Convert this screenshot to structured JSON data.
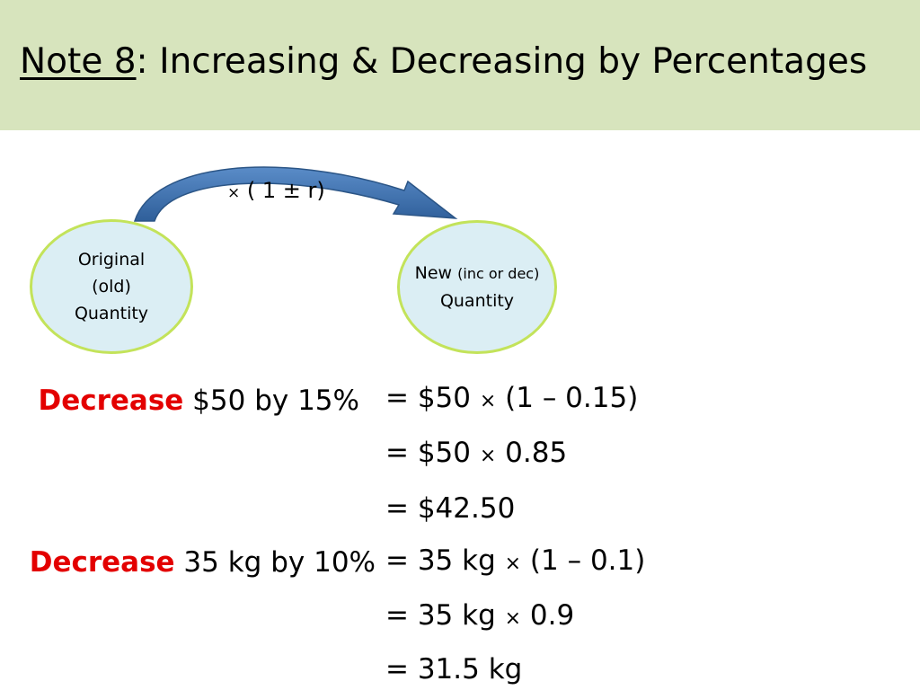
{
  "slide": {
    "title_prefix": "Note 8",
    "title_rest": ": Increasing & Decreasing by Percentages",
    "header_color": "#d7e4bd"
  },
  "diagram": {
    "formula_symbol": "×",
    "formula_text": " ( 1 ± r)",
    "arrow_color": "#4f81bd",
    "bubble_fill": "#dbeef4",
    "bubble_border": "#c3e35a",
    "original": {
      "line1": "Original",
      "line2": "(old)",
      "line3": "Quantity"
    },
    "new": {
      "line1_main": "New ",
      "line1_small": "(inc or dec)",
      "line2": "Quantity"
    }
  },
  "examples": [
    {
      "keyword": "Decrease",
      "rest": " $50 by 15%",
      "steps": [
        {
          "a": "= $50 ",
          "sym": "×",
          "b": " (1 – 0.15)"
        },
        {
          "a": "= $50 ",
          "sym": "×",
          "b": " 0.85"
        },
        {
          "a": "= $42.50",
          "sym": "",
          "b": ""
        }
      ]
    },
    {
      "keyword": "Decrease",
      "rest": " 35 kg by 10%",
      "steps": [
        {
          "a": "= 35 kg ",
          "sym": "×",
          "b": " (1 – 0.1)"
        },
        {
          "a": "= 35 kg ",
          "sym": "×",
          "b": " 0.9"
        },
        {
          "a": "= 31.5 kg",
          "sym": "",
          "b": ""
        }
      ]
    }
  ]
}
